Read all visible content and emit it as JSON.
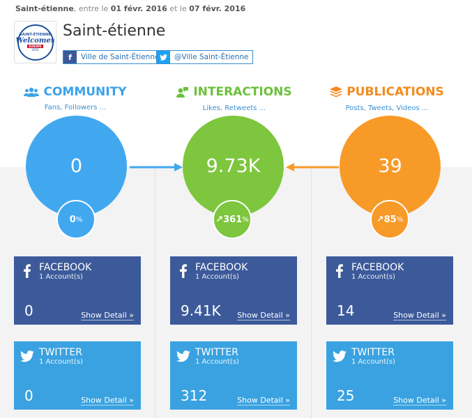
{
  "dateline": {
    "page": "Saint-étienne",
    "between": ", entre le ",
    "start": "01 févr. 2016",
    "and": " et le ",
    "end": "07 févr. 2016"
  },
  "header": {
    "title": "Saint-étienne",
    "logo_text": {
      "top": "SAINT-ÉTIENNE",
      "main": "Welcomes",
      "sub": "EUROPE",
      "year": "2016"
    },
    "facebook_tag": "Ville de Saint-Étienne",
    "twitter_tag": "@Ville Saint-Étienne"
  },
  "colors": {
    "blue": "#41a8f0",
    "green": "#7dc63d",
    "orange": "#f89a28",
    "facebook": "#3c5a9a",
    "twitter": "#3aa2e0"
  },
  "columns": [
    {
      "title": "COMMUNITY",
      "subtitle": "Fans, Followers ...",
      "icon": "users-icon",
      "total": "0",
      "change": "0",
      "change_unit": "%",
      "trend_arrow": "",
      "facebook": {
        "name": "FACEBOOK",
        "accounts": "1 Account(s)",
        "value": "0",
        "detail": "Show Detail »"
      },
      "twitter": {
        "name": "TWITTER",
        "accounts": "1 Account(s)",
        "value": "0",
        "detail": "Show Detail »"
      }
    },
    {
      "title": "INTERACTIONS",
      "subtitle": "Likes, Retweets ...",
      "icon": "chat-users-icon",
      "total": "9.73K",
      "change": "361",
      "change_unit": "%",
      "trend_arrow": "↗",
      "facebook": {
        "name": "FACEBOOK",
        "accounts": "1 Account(s)",
        "value": "9.41K",
        "detail": "Show Detail »"
      },
      "twitter": {
        "name": "TWITTER",
        "accounts": "1 Account(s)",
        "value": "312",
        "detail": "Show Detail »"
      }
    },
    {
      "title": "PUBLICATIONS",
      "subtitle": "Posts, Tweets, Videos ...",
      "icon": "stack-icon",
      "total": "39",
      "change": "85",
      "change_unit": "%",
      "trend_arrow": "↗",
      "facebook": {
        "name": "FACEBOOK",
        "accounts": "1 Account(s)",
        "value": "14",
        "detail": "Show Detail »"
      },
      "twitter": {
        "name": "TWITTER",
        "accounts": "1 Account(s)",
        "value": "25",
        "detail": "Show Detail »"
      }
    }
  ]
}
